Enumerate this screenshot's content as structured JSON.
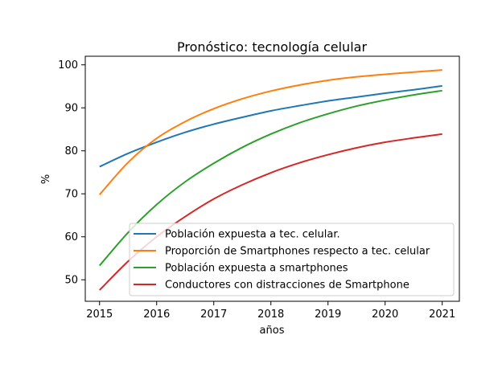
{
  "chart_data": {
    "type": "line",
    "title": "Pronóstico: tecnología celular",
    "xlabel": "años",
    "ylabel": "%",
    "xlim": [
      2014.75,
      2021.3
    ],
    "ylim": [
      45,
      102
    ],
    "xticks": [
      2015,
      2016,
      2017,
      2018,
      2019,
      2020,
      2021
    ],
    "yticks": [
      50,
      60,
      70,
      80,
      90,
      100
    ],
    "grid": false,
    "legend_position": "lower-right",
    "x": [
      2015,
      2015.5,
      2016,
      2016.5,
      2017,
      2017.5,
      2018,
      2018.5,
      2019,
      2019.5,
      2020,
      2020.5,
      2021
    ],
    "series": [
      {
        "name": "Población expuesta a tec. celular.",
        "color": "#1f77b4",
        "values": [
          76.3,
          79.4,
          82.0,
          84.3,
          86.2,
          87.8,
          89.3,
          90.5,
          91.6,
          92.5,
          93.4,
          94.2,
          95.1
        ]
      },
      {
        "name": "Proporción de Smartphones respecto a tec. celular",
        "color": "#ff7f0e",
        "values": [
          69.8,
          77.3,
          82.9,
          86.8,
          89.8,
          92.1,
          93.9,
          95.3,
          96.4,
          97.2,
          97.8,
          98.3,
          98.8
        ]
      },
      {
        "name": "Población expuesta a smartphones",
        "color": "#2ca02c",
        "values": [
          53.3,
          61.0,
          67.5,
          72.8,
          77.1,
          80.8,
          83.9,
          86.5,
          88.6,
          90.4,
          91.8,
          93.0,
          94.0
        ]
      },
      {
        "name": "Conductores con distracciones de Smartphone",
        "color": "#d62728",
        "values": [
          47.6,
          54.3,
          60.0,
          64.7,
          68.8,
          72.1,
          74.9,
          77.2,
          79.1,
          80.7,
          82.0,
          83.0,
          83.9
        ]
      }
    ]
  }
}
